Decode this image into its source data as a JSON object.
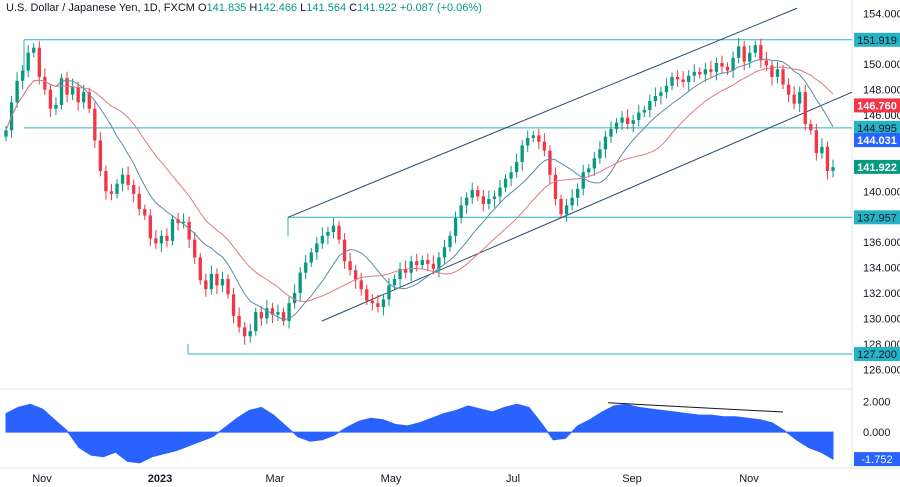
{
  "header": {
    "symbol": "U.S. Dollar / Japanese Yen, 1D, FXCM",
    "o_label": "O",
    "o": "141.835",
    "h_label": "H",
    "h": "142.466",
    "l_label": "L",
    "l": "141.564",
    "c_label": "C",
    "c": "141.922",
    "change": "+0.087 (+0.06%)"
  },
  "colors": {
    "up": "#089981",
    "down": "#f23645",
    "level_line": "#26b3c6",
    "channel": "#2a4a6e",
    "ma_fast": "#5d8aa8",
    "ma_slow": "#e07a80",
    "macd": "#2962ff"
  },
  "chart_data": [
    {
      "type": "candlestick",
      "y_ticks": [
        "154.000",
        "152.000",
        "150.000",
        "148.000",
        "146.000",
        "144.000",
        "142.000",
        "140.000",
        "138.000",
        "136.000",
        "134.000",
        "132.000",
        "130.000",
        "128.000",
        "126.000"
      ],
      "x_ticks": [
        "Nov",
        "2023",
        "Mar",
        "May",
        "Jul",
        "Sep",
        "Nov"
      ],
      "ylim": [
        125.0,
        154.5
      ],
      "levels": [
        {
          "label": "151.919",
          "value": 151.919,
          "color": "#26b3c6"
        },
        {
          "label": "144.995",
          "value": 144.995,
          "color": "#26b3c6"
        },
        {
          "label": "137.957",
          "value": 137.957,
          "color": "#26b3c6"
        },
        {
          "label": "127.200",
          "value": 127.2,
          "color": "#26b3c6"
        }
      ],
      "tags": [
        {
          "label": "146.760",
          "value": 146.76,
          "color": "#f23645"
        },
        {
          "label": "144.031",
          "value": 144.031,
          "color": "#2962ff"
        },
        {
          "label": "141.922",
          "value": 141.922,
          "color": "#089981"
        }
      ],
      "closes": [
        144.8,
        147.0,
        148.7,
        149.5,
        150.9,
        151.3,
        149.0,
        148.0,
        146.5,
        146.8,
        148.9,
        147.6,
        148.2,
        147.0,
        147.8,
        146.5,
        144.0,
        141.6,
        140.0,
        139.8,
        140.6,
        141.3,
        140.5,
        139.8,
        138.6,
        138.1,
        136.3,
        135.9,
        136.5,
        136.1,
        137.8,
        137.5,
        137.6,
        136.2,
        134.8,
        133.0,
        132.3,
        133.5,
        132.6,
        133.1,
        131.9,
        130.2,
        129.3,
        128.6,
        129.0,
        130.5,
        130.0,
        130.8,
        130.3,
        130.5,
        129.8,
        131.2,
        132.0,
        133.6,
        134.4,
        135.2,
        135.9,
        136.5,
        136.8,
        137.3,
        136.2,
        134.5,
        133.8,
        133.0,
        132.3,
        131.4,
        131.2,
        130.9,
        131.5,
        132.6,
        133.1,
        133.9,
        133.6,
        134.5,
        134.2,
        134.6,
        134.3,
        133.9,
        134.8,
        135.6,
        136.5,
        137.9,
        138.9,
        139.5,
        140.1,
        139.6,
        139.0,
        139.4,
        139.6,
        140.3,
        141.0,
        141.5,
        142.3,
        143.6,
        144.2,
        144.4,
        143.9,
        143.2,
        141.3,
        139.4,
        138.2,
        138.9,
        139.5,
        140.2,
        141.5,
        141.8,
        142.6,
        143.3,
        144.3,
        144.9,
        145.4,
        145.8,
        145.3,
        145.6,
        146.2,
        146.4,
        147.1,
        147.5,
        147.8,
        148.3,
        149.0,
        148.8,
        148.6,
        149.1,
        149.4,
        149.2,
        149.6,
        149.4,
        150.1,
        149.8,
        149.5,
        150.5,
        151.4,
        150.2,
        150.9,
        151.5,
        150.3,
        149.9,
        149.0,
        149.6,
        148.4,
        147.6,
        146.9,
        147.8,
        145.3,
        144.8,
        143.0,
        143.5,
        141.6,
        141.9
      ],
      "macd": {
        "ticks": [
          "2.000",
          "0.000"
        ],
        "value_label": "-1.752",
        "ylim": [
          -2.2,
          2.6
        ],
        "values": [
          1.2,
          1.6,
          1.8,
          1.5,
          0.8,
          0.1,
          -1.0,
          -1.5,
          -1.6,
          -1.3,
          -1.9,
          -2.0,
          -1.6,
          -1.4,
          -1.2,
          -0.9,
          -0.6,
          -0.3,
          0.3,
          0.9,
          1.4,
          1.6,
          1.1,
          0.4,
          -0.3,
          -0.6,
          -0.5,
          -0.2,
          0.3,
          0.7,
          0.9,
          0.8,
          0.5,
          0.4,
          0.6,
          0.9,
          1.2,
          1.4,
          1.7,
          1.5,
          1.3,
          1.6,
          1.8,
          1.6,
          0.6,
          -0.5,
          -0.4,
          0.4,
          0.8,
          1.3,
          1.7,
          1.8,
          1.6,
          1.5,
          1.4,
          1.3,
          1.2,
          1.1,
          1.1,
          1.0,
          1.0,
          0.9,
          0.8,
          0.6,
          0.1,
          -0.5,
          -1.0,
          -1.3,
          -1.752
        ]
      }
    }
  ]
}
